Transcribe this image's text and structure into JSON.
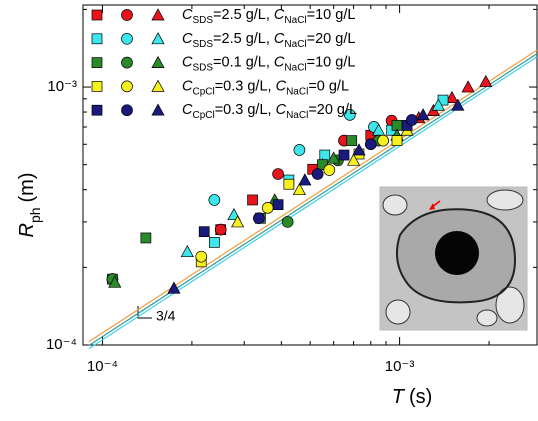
{
  "chart_data": {
    "type": "scatter",
    "xscale": "log",
    "yscale": "log",
    "xlim": [
      8.6e-05,
      0.0029
    ],
    "ylim": [
      0.0001,
      0.00208
    ],
    "xticks": [
      {
        "value": 0.0001,
        "label": "10⁻⁴"
      },
      {
        "value": 0.001,
        "label": "10⁻³"
      }
    ],
    "yticks": [
      {
        "value": 0.0001,
        "label": "10⁻⁴"
      },
      {
        "value": 0.001,
        "label": "10⁻³"
      }
    ],
    "xminorticks": [
      0.0002,
      0.0003,
      0.0004,
      0.0005,
      0.0006,
      0.0007,
      0.0008,
      0.0009,
      0.002
    ],
    "yminorticks": [
      0.0002,
      0.0003,
      0.0004,
      0.0005,
      0.0006,
      0.0007,
      0.0008,
      0.0009,
      0.002
    ],
    "xlabel": {
      "symbol": "T",
      "unit": "(s)"
    },
    "ylabel": {
      "symbol": "R",
      "subscript": "ph",
      "unit": "(m)"
    },
    "legend": "upper left",
    "annotation": "3/4",
    "series": [
      {
        "name": "CSDS=2.5 g/L, CNaCl=10 g/L",
        "color": "#e8141c",
        "groups": [
          {
            "marker": "square",
            "x": [
              0.00025,
              0.00032,
              0.00051,
              0.0008
            ],
            "y": [
              0.00028,
              0.000365,
              0.00048,
              0.00065
            ]
          },
          {
            "marker": "circle",
            "x": [
              0.000108,
              0.00025,
              0.00039,
              0.00065,
              0.00094
            ],
            "y": [
              0.00018,
              0.00028,
              0.00046,
              0.00062,
              0.00074
            ]
          },
          {
            "marker": "triangle",
            "x": [
              0.00116,
              0.0013,
              0.0015,
              0.0017,
              0.00195
            ],
            "y": [
              0.00076,
              0.00081,
              0.00091,
              0.001,
              0.00105
            ]
          }
        ]
      },
      {
        "name": "CSDS=2.5 g/L, CNaCl=20 g/L",
        "color": "#3ce6ea",
        "groups": [
          {
            "marker": "square",
            "x": [
              0.000108,
              0.000238,
              0.000424,
              0.00056,
              0.00094,
              0.0014
            ],
            "y": [
              0.00018,
              0.00025,
              0.000436,
              0.000545,
              0.00068,
              0.00089
            ]
          },
          {
            "marker": "circle",
            "x": [
              0.000238,
              0.00046,
              0.00068,
              0.00082
            ],
            "y": [
              0.000365,
              0.00057,
              0.00078,
              0.0007
            ]
          },
          {
            "marker": "triangle",
            "x": [
              0.000193,
              0.000277,
              0.00055,
              0.00085,
              0.00135
            ],
            "y": [
              0.00023,
              0.00032,
              0.0005,
              0.00068,
              0.00085
            ]
          }
        ]
      },
      {
        "name": "CSDS=0.1 g/L, CNaCl=10 g/L",
        "color": "#2a8a2a",
        "groups": [
          {
            "marker": "square",
            "x": [
              0.00014,
              0.00034,
              0.00055,
              0.00069,
              0.00098
            ],
            "y": [
              0.00026,
              0.00031,
              0.0005,
              0.00062,
              0.00071
            ]
          },
          {
            "marker": "circle",
            "x": [
              0.000108,
              0.00042,
              0.00062,
              0.00085
            ],
            "y": [
              0.00018,
              0.0003,
              0.00052,
              0.00062
            ]
          },
          {
            "marker": "triangle",
            "x": [
              0.00011,
              0.00038,
              0.0006,
              0.00098
            ],
            "y": [
              0.000175,
              0.000365,
              0.00053,
              0.00065
            ]
          }
        ]
      },
      {
        "name": "CCpCl=0.3 g/L, CNaCl=0 g/L",
        "color": "#f5f01e",
        "groups": [
          {
            "marker": "square",
            "x": [
              0.000215,
              0.000424,
              0.00073,
              0.00098
            ],
            "y": [
              0.00021,
              0.00042,
              0.00055,
              0.00062
            ]
          },
          {
            "marker": "circle",
            "x": [
              0.000215,
              0.00036,
              0.00058,
              0.00088
            ],
            "y": [
              0.00022,
              0.00034,
              0.000477,
              0.00062
            ]
          },
          {
            "marker": "triangle",
            "x": [
              0.000285,
              0.00046,
              0.0007,
              0.00106
            ],
            "y": [
              0.0003,
              0.0004,
              0.00052,
              0.00068
            ]
          }
        ]
      },
      {
        "name": "CCpCl=0.3 g/L, CNaCl=20 g/L",
        "color": "#1a1a7e",
        "groups": [
          {
            "marker": "square",
            "x": [
              0.00022,
              0.00039,
              0.00065,
              0.00106
            ],
            "y": [
              0.000275,
              0.00035,
              0.000545,
              0.00071
            ]
          },
          {
            "marker": "circle",
            "x": [
              0.000336,
              0.00053,
              0.0008,
              0.0011
            ],
            "y": [
              0.00031,
              0.00046,
              0.0006,
              0.000745
            ]
          },
          {
            "marker": "triangle",
            "x": [
              0.000174,
              0.00048,
              0.00073,
              0.0012,
              0.00157
            ],
            "y": [
              0.000166,
              0.000436,
              0.00057,
              0.00078,
              0.00085
            ]
          }
        ]
      }
    ],
    "fit_lines": [
      {
        "color": "#f0a040",
        "x": [
          9e-05,
          0.0029
        ],
        "y": [
          0.000103,
          0.00139
        ]
      },
      {
        "color": "#2a9a9a",
        "x": [
          9e-05,
          0.0029
        ],
        "y": [
          9.96e-05,
          0.001347
        ]
      },
      {
        "color": "#40d0f0",
        "x": [
          9e-05,
          0.0029
        ],
        "y": [
          9.68e-05,
          0.00131
        ]
      }
    ]
  }
}
